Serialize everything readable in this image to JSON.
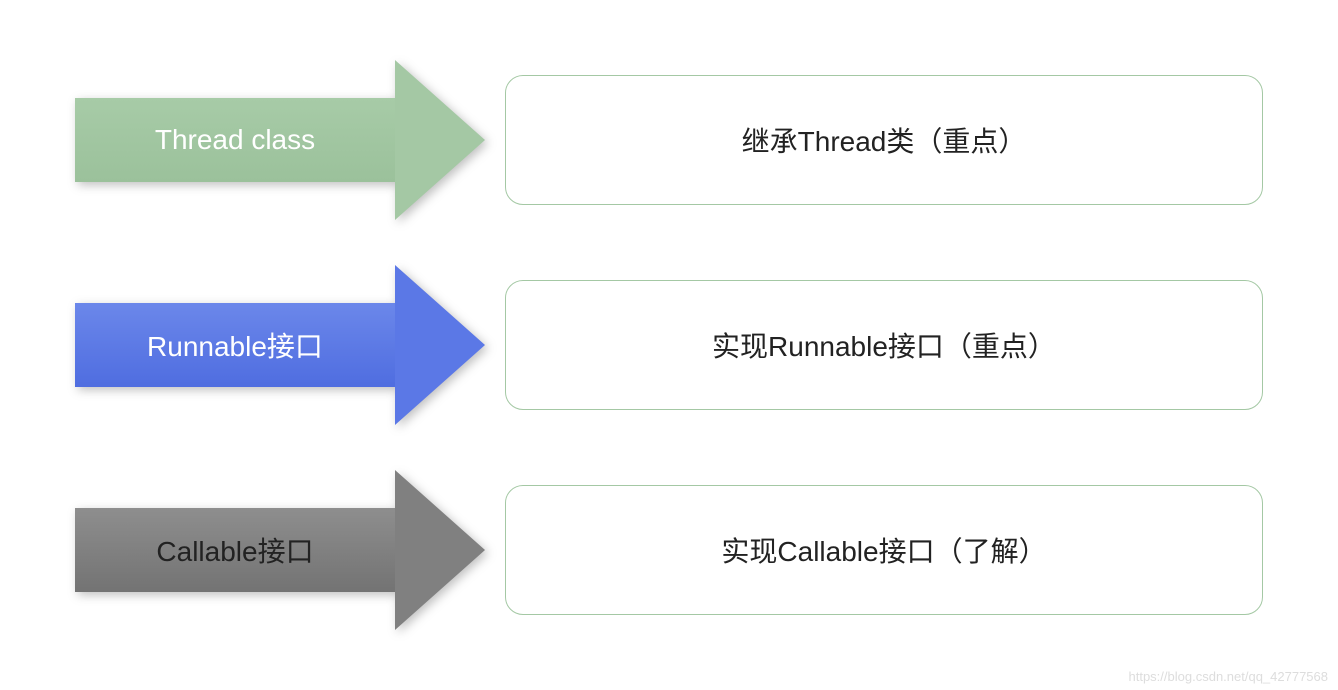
{
  "diagram": {
    "type": "infographic",
    "background_color": "#ffffff",
    "rows": [
      {
        "arrow_label": "Thread  class",
        "arrow_fill": "#a4c8a4",
        "arrow_gradient_start": "#a7cba7",
        "arrow_gradient_end": "#9bc19b",
        "arrow_text_color": "#ffffff",
        "desc_text": "继承Thread类（重点）",
        "desc_border_color": "#a4c8a4",
        "desc_text_color": "#222222"
      },
      {
        "arrow_label": "Runnable接口",
        "arrow_fill": "#5b78e6",
        "arrow_gradient_start": "#6b87ea",
        "arrow_gradient_end": "#4f6de0",
        "arrow_text_color": "#ffffff",
        "desc_text": "实现Runnable接口（重点）",
        "desc_border_color": "#a4c8a4",
        "desc_text_color": "#222222"
      },
      {
        "arrow_label": "Callable接口",
        "arrow_fill": "#808080",
        "arrow_gradient_start": "#8e8e8e",
        "arrow_gradient_end": "#737373",
        "arrow_text_color": "#222222",
        "desc_text": "实现Callable接口（了解）",
        "desc_border_color": "#a4c8a4",
        "desc_text_color": "#222222"
      }
    ],
    "label_fontsize": 28,
    "desc_fontsize": 28,
    "desc_border_radius": 18,
    "desc_border_width": 1,
    "arrow_body_width": 320,
    "arrow_body_height": 84,
    "arrow_head_width": 90,
    "arrow_total_height": 160,
    "shadow": "3px 3px 5px rgba(0,0,0,0.25)"
  },
  "watermark": "https://blog.csdn.net/qq_42777568"
}
